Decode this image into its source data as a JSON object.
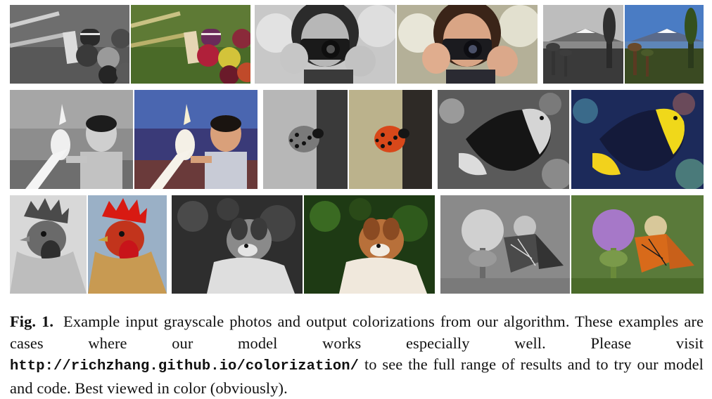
{
  "figure": {
    "label": "Fig. 1.",
    "caption_part1": "Example input grayscale photos and output colorizations from our algorithm. These examples are cases where our model works especially well. Please visit",
    "url": "http://richzhang.github.io/colorization/",
    "caption_part2": "to see the full range of results and to try our model and code. Best viewed in color (obviously)."
  },
  "photos": [
    {
      "subject": "croquet",
      "mode": "grayscale"
    },
    {
      "subject": "croquet",
      "mode": "color"
    },
    {
      "subject": "camera girl",
      "mode": "grayscale"
    },
    {
      "subject": "camera girl",
      "mode": "color"
    },
    {
      "subject": "volcano",
      "mode": "grayscale"
    },
    {
      "subject": "volcano",
      "mode": "color"
    },
    {
      "subject": "boy with cockatoo",
      "mode": "grayscale"
    },
    {
      "subject": "boy with cockatoo",
      "mode": "color"
    },
    {
      "subject": "ladybug",
      "mode": "grayscale"
    },
    {
      "subject": "ladybug",
      "mode": "color"
    },
    {
      "subject": "angelfish",
      "mode": "grayscale"
    },
    {
      "subject": "angelfish",
      "mode": "color"
    },
    {
      "subject": "rooster",
      "mode": "grayscale"
    },
    {
      "subject": "rooster",
      "mode": "color"
    },
    {
      "subject": "dog",
      "mode": "grayscale"
    },
    {
      "subject": "dog",
      "mode": "color"
    },
    {
      "subject": "butterfly on thistle",
      "mode": "grayscale"
    },
    {
      "subject": "butterfly on thistle",
      "mode": "color"
    }
  ]
}
